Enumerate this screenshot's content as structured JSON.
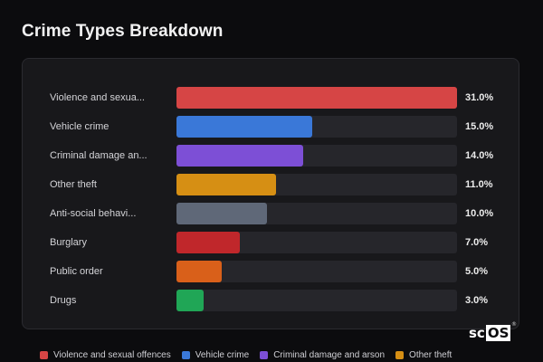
{
  "title": "Crime Types Breakdown",
  "badge": {
    "part1": "sc",
    "part2": "OS",
    "mark": "®"
  },
  "chart_data": {
    "type": "bar",
    "orientation": "horizontal",
    "xlim": [
      0,
      31
    ],
    "categories": [
      "Violence and sexua...",
      "Vehicle crime",
      "Criminal damage an...",
      "Other theft",
      "Anti-social behavi...",
      "Burglary",
      "Public order",
      "Drugs"
    ],
    "values": [
      31.0,
      15.0,
      14.0,
      11.0,
      10.0,
      7.0,
      5.0,
      3.0
    ],
    "value_labels": [
      "31.0%",
      "15.0%",
      "14.0%",
      "11.0%",
      "10.0%",
      "7.0%",
      "5.0%",
      "3.0%"
    ],
    "colors": [
      "#d64545",
      "#3a78d8",
      "#7d4fd6",
      "#d68f14",
      "#5f6878",
      "#c0272b",
      "#d9601a",
      "#20a656"
    ],
    "legend": {
      "placement": "bottom",
      "entries": [
        {
          "label": "Violence and sexual offences",
          "color": "#d64545"
        },
        {
          "label": "Vehicle crime",
          "color": "#3a78d8"
        },
        {
          "label": "Criminal damage and arson",
          "color": "#7d4fd6"
        },
        {
          "label": "Other theft",
          "color": "#d68f14"
        }
      ]
    }
  }
}
